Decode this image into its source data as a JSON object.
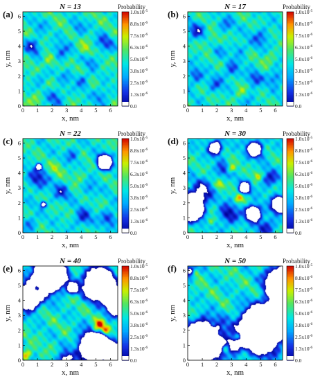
{
  "chart_data": [
    {
      "panel": "(a)",
      "title": "N = 13",
      "type": "heatmap",
      "xlabel": "x, nm",
      "ylabel": "y, nm",
      "xticks": [
        "0",
        "1",
        "2",
        "3",
        "4",
        "5",
        "6"
      ],
      "yticks": [
        "0",
        "1",
        "2",
        "3",
        "4",
        "5",
        "6"
      ],
      "xlim": [
        0,
        6.5
      ],
      "ylim": [
        0,
        6.3
      ],
      "colorbar": {
        "title": "Probability",
        "ticks": [
          "1.0x10-5",
          "8.8x10-6",
          "7.5x10-6",
          "6.3x10-6",
          "5.0x10-6",
          "3.8x10-6",
          "2.5x10-6",
          "1.3x10-6",
          "0.0"
        ]
      }
    },
    {
      "panel": "(b)",
      "title": "N = 17",
      "type": "heatmap",
      "xlabel": "x, nm",
      "ylabel": "y, nm",
      "xticks": [
        "0",
        "1",
        "2",
        "3",
        "4",
        "5",
        "6"
      ],
      "yticks": [
        "0",
        "1",
        "2",
        "3",
        "4",
        "5",
        "6"
      ],
      "xlim": [
        0,
        6.5
      ],
      "ylim": [
        0,
        6.3
      ],
      "colorbar": {
        "title": "Probability",
        "ticks": [
          "1.0x10-5",
          "8.8x10-6",
          "7.5x10-6",
          "6.3x10-6",
          "5.0x10-6",
          "3.8x10-6",
          "2.5x10-6",
          "1.3x10-6",
          "0.0"
        ]
      }
    },
    {
      "panel": "(c)",
      "title": "N = 22",
      "type": "heatmap",
      "xlabel": "x, nm",
      "ylabel": "y, nm",
      "xticks": [
        "0",
        "1",
        "2",
        "3",
        "4",
        "5",
        "6"
      ],
      "yticks": [
        "0",
        "1",
        "2",
        "3",
        "4",
        "5",
        "6"
      ],
      "xlim": [
        0,
        6.5
      ],
      "ylim": [
        0,
        6.3
      ],
      "colorbar": {
        "title": "Probability",
        "ticks": [
          "1.0x10-5",
          "8.8x10-6",
          "7.5x10-6",
          "6.3x10-6",
          "5.0x10-6",
          "3.8x10-6",
          "2.5x10-6",
          "1.3x10-6",
          "0.0"
        ]
      }
    },
    {
      "panel": "(d)",
      "title": "N = 30",
      "type": "heatmap",
      "xlabel": "x, nm",
      "ylabel": "y, nm",
      "xticks": [
        "0",
        "1",
        "2",
        "3",
        "4",
        "5",
        "6"
      ],
      "yticks": [
        "0",
        "1",
        "2",
        "3",
        "4",
        "5",
        "6"
      ],
      "xlim": [
        0,
        6.5
      ],
      "ylim": [
        0,
        6.3
      ],
      "colorbar": {
        "title": "Probability",
        "ticks": [
          "1.0x10-5",
          "8.8x10-6",
          "7.5x10-6",
          "6.3x10-6",
          "5.0x10-6",
          "3.8x10-6",
          "2.5x10-6",
          "1.3x10-6",
          "0.0"
        ]
      }
    },
    {
      "panel": "(e)",
      "title": "N = 40",
      "type": "heatmap",
      "xlabel": "x, nm",
      "ylabel": "y, nm",
      "xticks": [
        "0",
        "1",
        "2",
        "3",
        "4",
        "5",
        "6"
      ],
      "yticks": [
        "0",
        "1",
        "2",
        "3",
        "4",
        "5",
        "6"
      ],
      "xlim": [
        0,
        6.5
      ],
      "ylim": [
        0,
        6.3
      ],
      "colorbar": {
        "title": "Probability",
        "ticks": [
          "1.0x10-5",
          "8.8x10-6",
          "7.5x10-6",
          "6.3x10-6",
          "5.0x10-6",
          "3.8x10-6",
          "2.5x10-6",
          "1.3x10-6",
          "0.0"
        ]
      }
    },
    {
      "panel": "(f)",
      "title": "N = 50",
      "type": "heatmap",
      "xlabel": "x, nm",
      "ylabel": "y, nm",
      "xticks": [
        "0",
        "1",
        "2",
        "3",
        "4",
        "5",
        "6"
      ],
      "yticks": [
        "0",
        "1",
        "2",
        "3",
        "4",
        "5",
        "6"
      ],
      "xlim": [
        0,
        6.5
      ],
      "ylim": [
        0,
        6.3
      ],
      "colorbar": {
        "title": "Probability",
        "ticks": [
          "1.0x10-5",
          "8.8x10-6",
          "7.5x10-6",
          "6.3x10-6",
          "5.0x10-6",
          "3.8x10-6",
          "2.5x10-6",
          "1.3x10-6",
          "0.0"
        ]
      }
    }
  ]
}
